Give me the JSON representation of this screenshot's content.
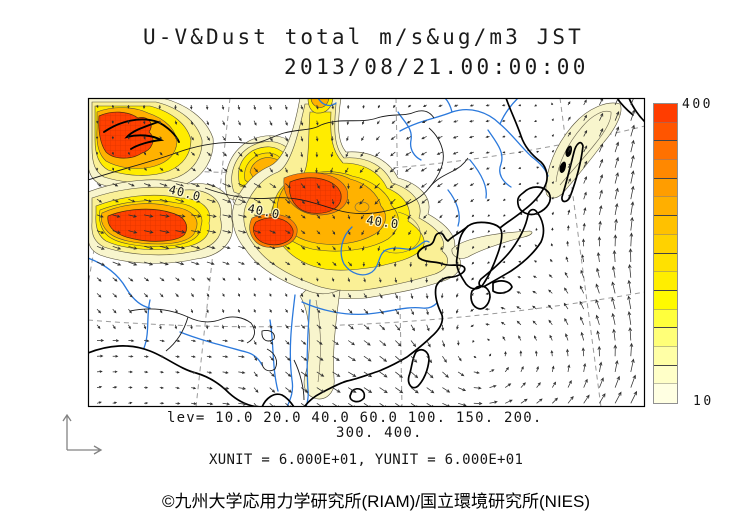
{
  "header": {
    "title_line1": "U-V&Dust total m/s&ug/m3 JST",
    "title_line2": "2013/08/21.00:00:00"
  },
  "footer": {
    "lev_line1": "lev= 10.0 20.0 40.0 60.0 100. 150. 200.",
    "lev_line2": "300. 400.",
    "units_line": "XUNIT = 6.000E+01, YUNIT = 6.000E+01",
    "credit": "©九州大学応用力学研究所(RIAM)/国立環境研究所(NIES)"
  },
  "colorbar": {
    "max_label": "400",
    "min_label": "10",
    "colors_top_to_bottom": [
      "#FF3D00",
      "#FF5500",
      "#FF7100",
      "#FF8800",
      "#FF9D00",
      "#FFAF00",
      "#FFC100",
      "#FFD200",
      "#FFE100",
      "#FFEE00",
      "#FFFA00",
      "#FFFF3C",
      "#FFFF78",
      "#FFFFA6",
      "#FFFFC8",
      "#FFFFE2"
    ]
  },
  "map": {
    "contour_labels": [
      "40.0",
      "40.0",
      "40.0"
    ]
  },
  "palette": {
    "lev10": "#F8F5CD",
    "lev20": "#FAF096",
    "lev40": "#FFEC00",
    "lev60": "#FFD800",
    "lev100": "#FFB200",
    "lev200": "#FF7E00",
    "lev300": "#FF4000",
    "river": "#2B79DC",
    "coast": "#000000",
    "border": "#1a1a1a",
    "vector": "#2e2e2e",
    "graticule": "#9a9a9a"
  },
  "chart_data": {
    "type": "heatmap",
    "title": "U-V&Dust total m/s&ug/m3 JST",
    "timestamp": "2013/08/21.00:00:00",
    "timezone": "JST",
    "wind_unit": "m/s",
    "dust_unit": "ug/m3",
    "contour_levels": [
      10.0,
      20.0,
      40.0,
      60.0,
      100,
      150,
      200,
      300,
      400
    ],
    "colorbar_min": 10,
    "colorbar_max": 400,
    "labeled_contour_value": 40.0,
    "xunit": "6.000E+01",
    "yunit": "6.000E+01",
    "region": "East Asia",
    "overlays": [
      "dust total concentration filled contours",
      "U-V wind vector field"
    ]
  }
}
